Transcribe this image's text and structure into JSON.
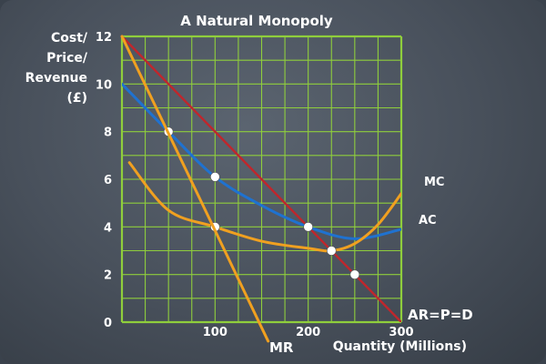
{
  "chart_data": {
    "type": "line",
    "title": "A Natural Monopoly",
    "ylabel_lines": [
      "Cost/",
      "Price/",
      "Revenue",
      "(£)"
    ],
    "xlabel": "Quantity (Millions)",
    "xlim": [
      0,
      300
    ],
    "ylim": [
      0,
      12
    ],
    "x_ticks": [
      100,
      200,
      300
    ],
    "y_ticks": [
      0,
      2,
      4,
      6,
      8,
      10,
      12
    ],
    "grid": true,
    "grid_step_x": 25,
    "grid_step_y": 1,
    "series": [
      {
        "name": "AR=P=D",
        "color": "#c0262c",
        "x": [
          0,
          300
        ],
        "y": [
          12,
          0
        ]
      },
      {
        "name": "MR",
        "color": "#f0a020",
        "x": [
          0,
          50,
          100,
          150
        ],
        "y": [
          12,
          8,
          4,
          0
        ]
      },
      {
        "name": "AC",
        "color": "#1f72d0",
        "x": [
          0,
          50,
          100,
          150,
          200,
          250,
          300
        ],
        "y": [
          10,
          8,
          6.1,
          4.9,
          4.0,
          3.5,
          3.9
        ]
      },
      {
        "name": "MC",
        "color": "#f0a020",
        "x": [
          8,
          50,
          100,
          150,
          200,
          225,
          250,
          275,
          300
        ],
        "y": [
          6.7,
          4.7,
          4.0,
          3.4,
          3.1,
          3.0,
          3.3,
          4.1,
          5.4
        ]
      }
    ],
    "points": [
      {
        "x": 50,
        "y": 8
      },
      {
        "x": 100,
        "y": 6.1
      },
      {
        "x": 100,
        "y": 4
      },
      {
        "x": 200,
        "y": 4
      },
      {
        "x": 225,
        "y": 3
      },
      {
        "x": 250,
        "y": 2
      }
    ]
  }
}
